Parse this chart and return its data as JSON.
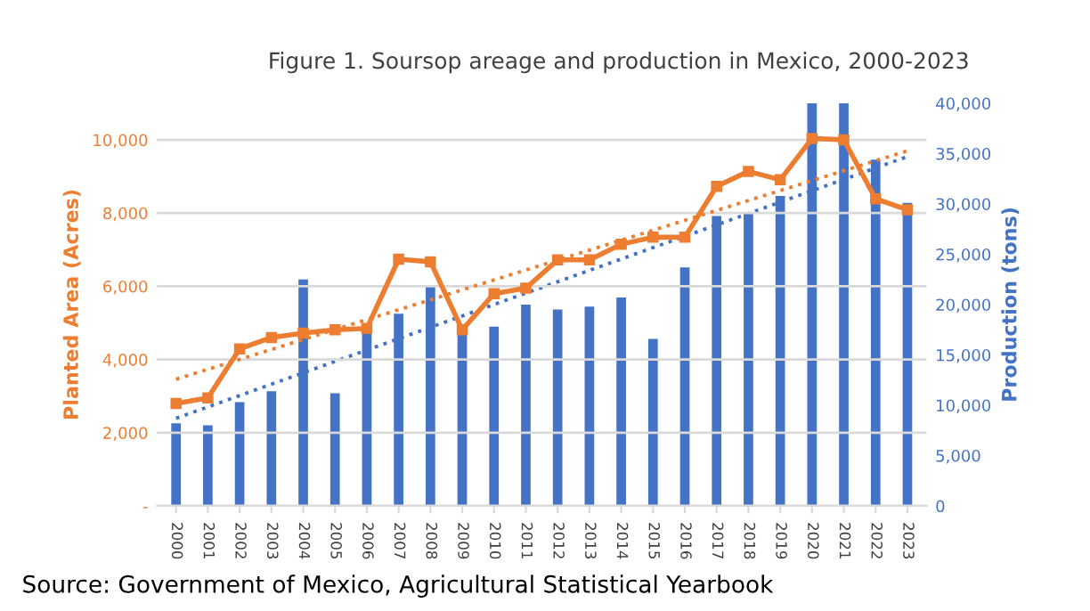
{
  "chart_data": {
    "type": "bar",
    "title": "Figure 1. Soursop areage and production in Mexico, 2000-2023",
    "ylabel": "Planted Area (Acres)",
    "y2label": "Production (tons)",
    "categories": [
      "2000",
      "2001",
      "2002",
      "2003",
      "2004",
      "2005",
      "2006",
      "2007",
      "2008",
      "2009",
      "2010",
      "2011",
      "2012",
      "2013",
      "2014",
      "2015",
      "2016",
      "2017",
      "2018",
      "2019",
      "2020",
      "2021",
      "2022",
      "2023"
    ],
    "series": [
      {
        "axis": "y2",
        "color": "#4472c4",
        "values": [
          8200,
          8000,
          10300,
          11400,
          22500,
          11200,
          17400,
          19100,
          21800,
          17400,
          17800,
          20000,
          19500,
          19800,
          20700,
          16600,
          23700,
          28800,
          29200,
          30800,
          40000,
          40000,
          34400,
          30100
        ]
      },
      {
        "type": "line",
        "color": "#ed7d31",
        "marker": "square",
        "line_style": "solid",
        "values": [
          2800,
          2950,
          4290,
          4600,
          4720,
          4810,
          4850,
          6740,
          6670,
          4810,
          5800,
          5950,
          6720,
          6720,
          7150,
          7340,
          7340,
          8730,
          9140,
          8910,
          10040,
          10000,
          8390,
          8090
        ]
      },
      {
        "type": "line",
        "color": "#ed7d31",
        "marker": "none",
        "line_style": "dotted",
        "values": [
          3460,
          null,
          null,
          null,
          null,
          null,
          null,
          null,
          null,
          null,
          null,
          null,
          null,
          null,
          null,
          null,
          null,
          null,
          null,
          null,
          null,
          null,
          null,
          9700
        ]
      },
      {
        "type": "line",
        "axis": "y2",
        "color": "#4472c4",
        "marker": "none",
        "line_style": "dotted",
        "values": [
          8700,
          null,
          null,
          null,
          null,
          null,
          null,
          null,
          null,
          null,
          null,
          null,
          null,
          null,
          null,
          null,
          null,
          null,
          null,
          null,
          null,
          null,
          null,
          34700
        ]
      }
    ],
    "ylim": [
      0,
      11000
    ],
    "yticks": [
      {
        "value": 0,
        "label": "-"
      },
      {
        "value": 2000,
        "label": "2,000"
      },
      {
        "value": 4000,
        "label": "4,000"
      },
      {
        "value": 6000,
        "label": "6,000"
      },
      {
        "value": 8000,
        "label": "8,000"
      },
      {
        "value": 10000,
        "label": "10,000"
      }
    ],
    "y2lim": [
      0,
      40000
    ],
    "y2ticks": [
      {
        "value": 0,
        "label": "0"
      },
      {
        "value": 5000,
        "label": "5,000"
      },
      {
        "value": 10000,
        "label": "10,000"
      },
      {
        "value": 15000,
        "label": "15,000"
      },
      {
        "value": 20000,
        "label": "20,000"
      },
      {
        "value": 25000,
        "label": "25,000"
      },
      {
        "value": 30000,
        "label": "30,000"
      },
      {
        "value": 35000,
        "label": "35,000"
      },
      {
        "value": 40000,
        "label": "40,000"
      }
    ],
    "grid": "y",
    "legend": false,
    "annotations": [
      "Source: Government of Mexico, Agricultural Statistical Yearbook"
    ]
  }
}
